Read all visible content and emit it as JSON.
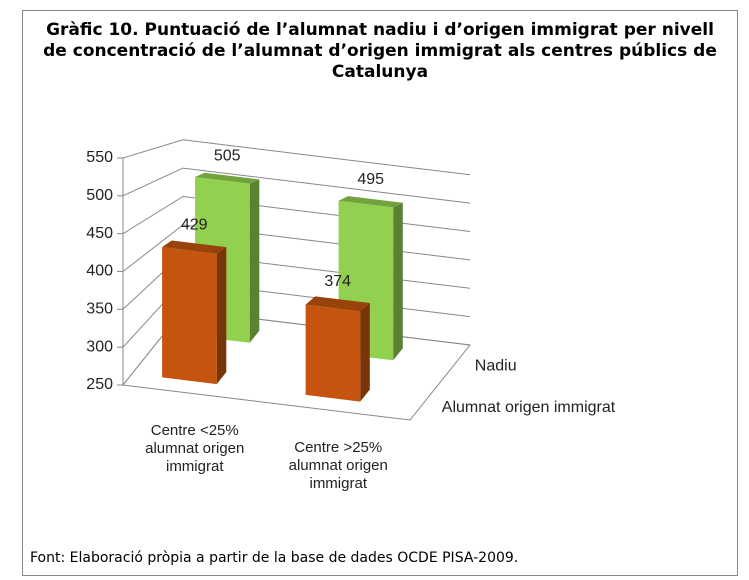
{
  "chart_data": {
    "type": "bar3d",
    "title": "Gràfic 10. Puntuació de l’alumnat nadiu i d’origen immigrat per nivell de concentració de l’alumnat d’origen immigrat als centres públics de Catalunya",
    "categories": [
      "Centre <25% alumnat origen immigrat",
      "Centre >25% alumnat origen immigrat"
    ],
    "series": [
      {
        "name": "Alumnat origen immigrat",
        "color": "#c5540f",
        "values": [
          429,
          374
        ]
      },
      {
        "name": "Nadiu",
        "color": "#92d050",
        "values": [
          505,
          495
        ]
      }
    ],
    "ylim": [
      250,
      550
    ],
    "yticks": [
      250,
      300,
      350,
      400,
      450,
      500,
      550
    ],
    "grid": true,
    "source": "Font: Elaboració pròpia a partir de la base de dades OCDE PISA-2009."
  }
}
